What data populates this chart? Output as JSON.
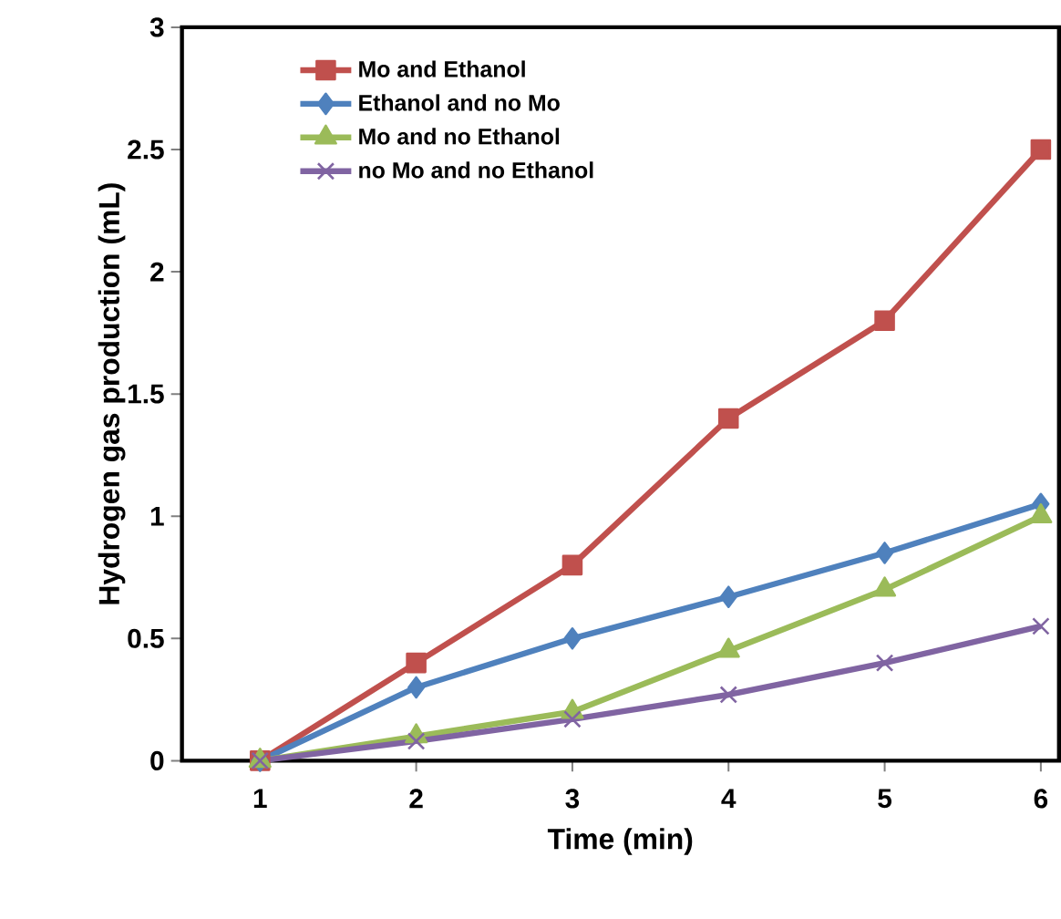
{
  "chart_data": {
    "type": "line",
    "xlabel": "Time (min)",
    "ylabel": "Hydrogen gas production (mL)",
    "categories": [
      "1",
      "2",
      "3",
      "4",
      "5",
      "6"
    ],
    "series": [
      {
        "name": "Mo and Ethanol",
        "color": "#c0504d",
        "marker": "square",
        "values": [
          0,
          0.4,
          0.8,
          1.4,
          1.8,
          2.5
        ]
      },
      {
        "name": "Ethanol and no Mo",
        "color": "#4f81bd",
        "marker": "diamond",
        "values": [
          0,
          0.3,
          0.5,
          0.67,
          0.85,
          1.05
        ]
      },
      {
        "name": "Mo and no Ethanol",
        "color": "#9bbb59",
        "marker": "triangle",
        "values": [
          0,
          0.1,
          0.2,
          0.45,
          0.7,
          1.0
        ]
      },
      {
        "name": "no Mo and no Ethanol",
        "color": "#8064a2",
        "marker": "cross",
        "values": [
          0,
          0.08,
          0.17,
          0.27,
          0.4,
          0.55
        ]
      }
    ],
    "ylim": [
      0,
      3
    ],
    "yticks": [
      0,
      0.5,
      1,
      1.5,
      2,
      2.5,
      3
    ],
    "grid": false,
    "legend": "top left",
    "line_style": "solid"
  }
}
